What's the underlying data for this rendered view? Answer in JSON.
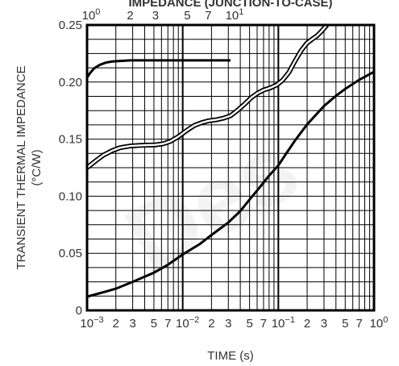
{
  "chart_data": {
    "type": "line",
    "title": "IMPEDANCE (JUNCTION-TO-CASE)",
    "xlabel": "TIME (s)",
    "ylabel": "TRANSIENT THERMAL IMPEDANCE",
    "ylabel_unit": "(°C/W)",
    "x_scale": "log",
    "xlim": [
      0.001,
      1
    ],
    "ylim": [
      0,
      0.25
    ],
    "y_ticks": [
      0,
      0.05,
      0.1,
      0.15,
      0.2,
      0.25
    ],
    "y_tick_labels": [
      "0",
      "0.05",
      "0.10",
      "0.15",
      "0.20",
      "0.25"
    ],
    "x_tick_labels": [
      {
        "base": "10",
        "exp": "−3",
        "value": 0.001
      },
      {
        "base": "2",
        "exp": "",
        "value": 0.002
      },
      {
        "base": "3",
        "exp": "",
        "value": 0.003
      },
      {
        "base": "5",
        "exp": "",
        "value": 0.005
      },
      {
        "base": "7",
        "exp": "",
        "value": 0.007
      },
      {
        "base": "10",
        "exp": "−2",
        "value": 0.01
      },
      {
        "base": "2",
        "exp": "",
        "value": 0.02
      },
      {
        "base": "3",
        "exp": "",
        "value": 0.03
      },
      {
        "base": "5",
        "exp": "",
        "value": 0.05
      },
      {
        "base": "7",
        "exp": "",
        "value": 0.07
      },
      {
        "base": "10",
        "exp": "−1",
        "value": 0.1
      },
      {
        "base": "2",
        "exp": "",
        "value": 0.2
      },
      {
        "base": "3",
        "exp": "",
        "value": 0.3
      },
      {
        "base": "5",
        "exp": "",
        "value": 0.5
      },
      {
        "base": "7",
        "exp": "",
        "value": 0.7
      },
      {
        "base": "10",
        "exp": "0",
        "value": 1
      }
    ],
    "top_axis": {
      "xlim": [
        1,
        100
      ],
      "tick_labels": [
        {
          "base": "10",
          "exp": "0",
          "value": 1
        },
        {
          "base": "2",
          "exp": "",
          "value": 2
        },
        {
          "base": "3",
          "exp": "",
          "value": 3
        },
        {
          "base": "5",
          "exp": "",
          "value": 5
        },
        {
          "base": "7",
          "exp": "",
          "value": 7
        },
        {
          "base": "10",
          "exp": "1",
          "value": 10
        }
      ]
    },
    "grid": true,
    "series": [
      {
        "axis": "top",
        "style": "solid",
        "x": [
          1.0,
          1.05,
          1.12,
          1.22,
          1.35,
          1.5,
          1.7,
          2.0,
          3.0,
          5.0,
          7.0,
          10.0
        ],
        "y": [
          0.204,
          0.208,
          0.212,
          0.215,
          0.217,
          0.218,
          0.2185,
          0.219,
          0.219,
          0.219,
          0.219,
          0.219
        ]
      },
      {
        "axis": "top",
        "style": "double",
        "x": [
          1.0,
          1.15,
          1.3,
          1.5,
          1.7,
          2.0,
          2.3,
          2.6,
          3.0,
          3.4,
          3.8,
          4.3,
          5.0,
          5.6,
          6.3,
          7.0,
          8.0,
          9.0,
          10.0,
          11.0,
          12.5,
          14.0,
          15.5,
          17.0,
          19.0,
          21.0,
          23.0,
          25.5,
          28.0,
          31.0,
          34.0,
          37.0,
          40.0,
          43.0,
          47.0
        ],
        "y": [
          0.125,
          0.131,
          0.136,
          0.14,
          0.1425,
          0.144,
          0.1445,
          0.1448,
          0.145,
          0.146,
          0.148,
          0.152,
          0.158,
          0.162,
          0.1645,
          0.166,
          0.167,
          0.1685,
          0.1705,
          0.1745,
          0.1805,
          0.1865,
          0.1905,
          0.193,
          0.195,
          0.1975,
          0.2015,
          0.2085,
          0.218,
          0.2275,
          0.234,
          0.2375,
          0.2405,
          0.2445,
          0.25
        ]
      },
      {
        "axis": "bottom",
        "style": "solid",
        "x": [
          0.001,
          0.0015,
          0.002,
          0.003,
          0.005,
          0.007,
          0.01,
          0.015,
          0.02,
          0.03,
          0.04,
          0.05,
          0.06,
          0.07,
          0.08,
          0.1,
          0.12,
          0.15,
          0.2,
          0.3,
          0.4,
          0.5,
          0.7,
          1.0
        ],
        "y": [
          0.012,
          0.016,
          0.019,
          0.025,
          0.033,
          0.04,
          0.049,
          0.058,
          0.066,
          0.077,
          0.087,
          0.097,
          0.105,
          0.112,
          0.118,
          0.127,
          0.137,
          0.149,
          0.163,
          0.179,
          0.188,
          0.194,
          0.202,
          0.209
        ]
      }
    ]
  },
  "watermark": "Des"
}
